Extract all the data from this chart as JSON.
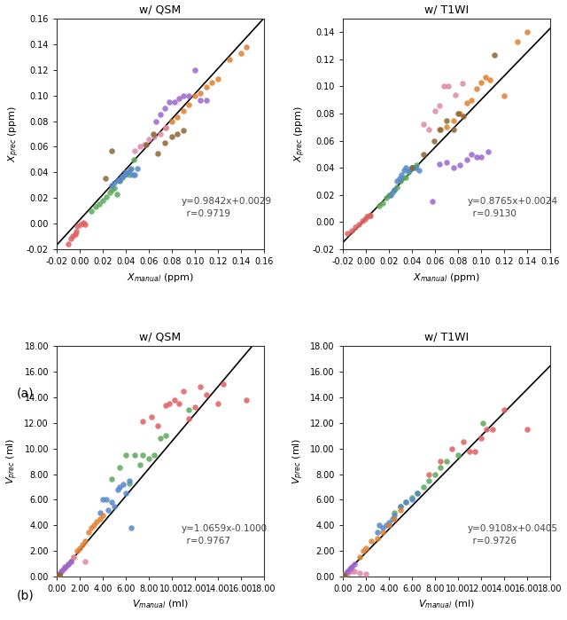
{
  "fig_width": 6.4,
  "fig_height": 6.99,
  "background": "white",
  "panel_a_qsm": {
    "title": "w/ QSM",
    "xlabel": "$X_{manual}$ (ppm)",
    "ylabel": "$X_{prec}$ (ppm)",
    "xlim": [
      -0.02,
      0.16
    ],
    "ylim": [
      -0.02,
      0.16
    ],
    "xticks": [
      -0.02,
      0.0,
      0.02,
      0.04,
      0.06,
      0.08,
      0.1,
      0.12,
      0.14,
      0.16
    ],
    "yticks": [
      -0.02,
      0.0,
      0.02,
      0.04,
      0.06,
      0.08,
      0.1,
      0.12,
      0.14,
      0.16
    ],
    "eq_text": "y=0.9842x+0.0029\n  r=0.9719",
    "slope": 0.9842,
    "intercept": 0.0029,
    "scatter": {
      "red": {
        "x": [
          -0.01,
          -0.008,
          -0.006,
          -0.004,
          -0.003,
          -0.002,
          0.001,
          0.003,
          0.005
        ],
        "y": [
          -0.016,
          -0.012,
          -0.01,
          -0.008,
          -0.006,
          -0.002,
          -0.001,
          0.001,
          -0.001
        ]
      },
      "green": {
        "x": [
          0.01,
          0.014,
          0.017,
          0.02,
          0.023,
          0.026,
          0.028,
          0.03,
          0.032,
          0.035,
          0.037,
          0.04,
          0.043,
          0.045,
          0.047
        ],
        "y": [
          0.01,
          0.013,
          0.015,
          0.018,
          0.021,
          0.024,
          0.026,
          0.028,
          0.023,
          0.033,
          0.036,
          0.039,
          0.038,
          0.043,
          0.05
        ]
      },
      "blue": {
        "x": [
          0.028,
          0.03,
          0.033,
          0.035,
          0.037,
          0.039,
          0.04,
          0.042,
          0.044,
          0.046,
          0.048,
          0.05
        ],
        "y": [
          0.03,
          0.032,
          0.034,
          0.034,
          0.037,
          0.038,
          0.04,
          0.04,
          0.042,
          0.038,
          0.038,
          0.043
        ]
      },
      "orange": {
        "x": [
          0.075,
          0.08,
          0.085,
          0.09,
          0.095,
          0.1,
          0.105,
          0.11,
          0.115,
          0.12,
          0.13,
          0.14,
          0.145
        ],
        "y": [
          0.075,
          0.08,
          0.083,
          0.088,
          0.093,
          0.1,
          0.102,
          0.107,
          0.11,
          0.113,
          0.128,
          0.133,
          0.138
        ]
      },
      "purple": {
        "x": [
          0.066,
          0.07,
          0.074,
          0.078,
          0.082,
          0.086,
          0.09,
          0.095,
          0.1,
          0.105,
          0.11
        ],
        "y": [
          0.08,
          0.085,
          0.09,
          0.095,
          0.095,
          0.098,
          0.1,
          0.1,
          0.12,
          0.096,
          0.096
        ]
      },
      "pink": {
        "x": [
          0.048,
          0.052,
          0.056,
          0.06,
          0.065,
          0.07,
          0.075
        ],
        "y": [
          0.057,
          0.06,
          0.062,
          0.066,
          0.068,
          0.07,
          0.075
        ]
      },
      "brown": {
        "x": [
          0.022,
          0.028,
          0.058,
          0.064,
          0.068,
          0.074,
          0.08,
          0.085,
          0.09
        ],
        "y": [
          0.035,
          0.057,
          0.062,
          0.07,
          0.055,
          0.063,
          0.068,
          0.07,
          0.073
        ]
      }
    }
  },
  "panel_a_t1wi": {
    "title": "w/ T1WI",
    "xlabel": "$X_{manual}$ (ppm)",
    "ylabel": "$X_{prec}$ (ppm)",
    "xlim": [
      -0.02,
      0.16
    ],
    "ylim": [
      -0.02,
      0.15
    ],
    "xticks": [
      -0.02,
      0.0,
      0.02,
      0.04,
      0.06,
      0.08,
      0.1,
      0.12,
      0.14,
      0.16
    ],
    "yticks": [
      -0.02,
      0.0,
      0.02,
      0.04,
      0.06,
      0.08,
      0.1,
      0.12,
      0.14
    ],
    "eq_text": "y=0.8765x+0.0024\n  r=0.9130",
    "slope": 0.8765,
    "intercept": 0.0024,
    "scatter": {
      "red": {
        "x": [
          -0.016,
          -0.012,
          -0.009,
          -0.006,
          -0.003,
          -0.001,
          0.001,
          0.003,
          0.004
        ],
        "y": [
          -0.008,
          -0.006,
          -0.004,
          -0.002,
          0.001,
          0.002,
          0.004,
          0.005,
          0.005
        ]
      },
      "green": {
        "x": [
          0.012,
          0.015,
          0.018,
          0.02,
          0.023,
          0.025,
          0.027,
          0.03,
          0.032,
          0.035,
          0.037,
          0.04,
          0.042,
          0.044
        ],
        "y": [
          0.012,
          0.014,
          0.018,
          0.02,
          0.022,
          0.024,
          0.026,
          0.03,
          0.032,
          0.033,
          0.037,
          0.04,
          0.04,
          0.042
        ]
      },
      "blue": {
        "x": [
          0.022,
          0.025,
          0.027,
          0.029,
          0.031,
          0.033,
          0.035,
          0.038,
          0.04,
          0.043,
          0.046
        ],
        "y": [
          0.02,
          0.024,
          0.03,
          0.032,
          0.035,
          0.038,
          0.04,
          0.038,
          0.04,
          0.04,
          0.038
        ]
      },
      "orange": {
        "x": [
          0.064,
          0.07,
          0.076,
          0.082,
          0.088,
          0.092,
          0.096,
          0.1,
          0.104,
          0.108,
          0.12,
          0.132,
          0.14
        ],
        "y": [
          0.068,
          0.07,
          0.075,
          0.08,
          0.088,
          0.09,
          0.098,
          0.103,
          0.107,
          0.105,
          0.093,
          0.133,
          0.14
        ]
      },
      "purple": {
        "x": [
          0.058,
          0.064,
          0.07,
          0.076,
          0.082,
          0.088,
          0.092,
          0.096,
          0.1,
          0.106
        ],
        "y": [
          0.015,
          0.043,
          0.044,
          0.04,
          0.042,
          0.046,
          0.05,
          0.048,
          0.048,
          0.052
        ]
      },
      "pink": {
        "x": [
          0.05,
          0.055,
          0.06,
          0.064,
          0.068,
          0.072,
          0.078,
          0.084
        ],
        "y": [
          0.072,
          0.068,
          0.082,
          0.086,
          0.1,
          0.1,
          0.094,
          0.102
        ]
      },
      "brown": {
        "x": [
          0.04,
          0.05,
          0.059,
          0.065,
          0.07,
          0.076,
          0.08,
          0.085,
          0.112
        ],
        "y": [
          0.04,
          0.05,
          0.06,
          0.068,
          0.075,
          0.068,
          0.08,
          0.078,
          0.123
        ]
      }
    }
  },
  "panel_b_qsm": {
    "title": "w/ QSM",
    "xlabel": "$V_{manual}$ (ml)",
    "ylabel": "$V_{prec}$ (ml)",
    "xlim": [
      0,
      18
    ],
    "ylim": [
      0,
      18
    ],
    "xticks": [
      0,
      2,
      4,
      6,
      8,
      10,
      12,
      14,
      16,
      18
    ],
    "yticks": [
      0,
      2,
      4,
      6,
      8,
      10,
      12,
      14,
      16,
      18
    ],
    "eq_text": "y=1.0659x-0.1000\n  r=0.9767",
    "slope": 1.0659,
    "intercept": -0.1,
    "scatter": {
      "red": {
        "x": [
          7.5,
          8.2,
          8.8,
          9.5,
          9.8,
          10.2,
          10.6,
          11.0,
          11.5,
          12.0,
          12.5,
          13.0,
          14.0,
          14.5,
          16.5
        ],
        "y": [
          12.1,
          12.5,
          11.8,
          13.4,
          13.5,
          13.8,
          13.5,
          14.5,
          12.3,
          13.2,
          14.8,
          14.2,
          13.5,
          15.0,
          13.8
        ]
      },
      "green": {
        "x": [
          4.8,
          5.5,
          6.0,
          6.3,
          6.8,
          7.2,
          7.5,
          8.0,
          8.5,
          9.0,
          9.5,
          11.5
        ],
        "y": [
          7.6,
          8.5,
          9.5,
          7.3,
          9.5,
          8.7,
          9.5,
          9.2,
          9.5,
          10.8,
          11.0,
          13.0
        ]
      },
      "blue": {
        "x": [
          3.8,
          4.0,
          4.3,
          4.5,
          4.8,
          5.0,
          5.3,
          5.5,
          5.8,
          6.0,
          6.3,
          6.5
        ],
        "y": [
          5.0,
          6.0,
          6.0,
          5.2,
          5.8,
          5.5,
          6.8,
          7.0,
          7.2,
          6.5,
          7.5,
          3.8
        ]
      },
      "orange": {
        "x": [
          1.5,
          1.8,
          2.0,
          2.2,
          2.5,
          2.8,
          3.0,
          3.2,
          3.5,
          3.8,
          4.0
        ],
        "y": [
          1.5,
          2.0,
          2.2,
          2.5,
          2.8,
          3.5,
          3.8,
          4.0,
          4.3,
          4.5,
          4.8
        ]
      },
      "pink": {
        "x": [
          0.3,
          0.5,
          0.7,
          1.0,
          1.2,
          1.5,
          2.5
        ],
        "y": [
          0.3,
          0.5,
          0.8,
          1.0,
          1.2,
          1.5,
          1.2
        ]
      },
      "purple": {
        "x": [
          0.2,
          0.4,
          0.6,
          0.8,
          1.0,
          1.2
        ],
        "y": [
          0.2,
          0.4,
          0.6,
          0.8,
          1.0,
          1.2
        ]
      },
      "brown": {
        "x": [
          0.1,
          0.15,
          0.2
        ],
        "y": [
          0.05,
          0.1,
          0.15
        ]
      }
    }
  },
  "panel_b_t1wi": {
    "title": "w/ T1WI",
    "xlabel": "$V_{manual}$ (ml)",
    "ylabel": "$V_{prec}$ (ml)",
    "xlim": [
      0,
      18
    ],
    "ylim": [
      0,
      18
    ],
    "xticks": [
      0,
      2,
      4,
      6,
      8,
      10,
      12,
      14,
      16,
      18
    ],
    "yticks": [
      0,
      2,
      4,
      6,
      8,
      10,
      12,
      14,
      16,
      18
    ],
    "eq_text": "y=0.9108x+0.0405\n  r=0.9726",
    "slope": 0.9108,
    "intercept": 0.0405,
    "scatter": {
      "red": {
        "x": [
          7.5,
          8.5,
          9.5,
          10.5,
          11.0,
          11.5,
          12.0,
          12.5,
          13.0,
          14.0,
          16.0
        ],
        "y": [
          8.0,
          9.0,
          10.0,
          10.5,
          9.8,
          9.8,
          10.8,
          11.5,
          11.5,
          13.0,
          11.5
        ]
      },
      "green": {
        "x": [
          4.5,
          5.0,
          5.5,
          6.0,
          6.5,
          7.0,
          7.5,
          8.0,
          8.5,
          9.0,
          10.0,
          12.2
        ],
        "y": [
          5.0,
          5.5,
          5.8,
          6.2,
          6.5,
          7.0,
          7.5,
          8.0,
          8.5,
          9.0,
          9.5,
          12.0
        ]
      },
      "blue": {
        "x": [
          3.0,
          3.2,
          3.5,
          3.8,
          4.0,
          4.3,
          4.5,
          5.0,
          5.5,
          6.0,
          6.5
        ],
        "y": [
          3.5,
          4.0,
          3.8,
          4.0,
          4.2,
          4.5,
          4.8,
          5.5,
          5.8,
          6.0,
          6.5
        ]
      },
      "orange": {
        "x": [
          1.5,
          1.8,
          2.0,
          2.5,
          3.0,
          3.5,
          4.0,
          4.5,
          5.0
        ],
        "y": [
          1.5,
          2.0,
          2.2,
          2.8,
          3.0,
          3.5,
          4.0,
          4.5,
          5.2
        ]
      },
      "pink": {
        "x": [
          0.5,
          0.8,
          1.0,
          1.5,
          2.0
        ],
        "y": [
          0.3,
          0.4,
          0.4,
          0.3,
          0.2
        ]
      },
      "purple": {
        "x": [
          0.2,
          0.4,
          0.6,
          0.8,
          1.0
        ],
        "y": [
          0.2,
          0.4,
          0.6,
          0.8,
          1.0
        ]
      },
      "brown": {
        "x": [
          0.1,
          0.2
        ],
        "y": [
          0.0,
          0.1
        ]
      }
    }
  },
  "colors": {
    "red": "#e06060",
    "green": "#5aaa5a",
    "blue": "#5588cc",
    "orange": "#e08030",
    "purple": "#9966cc",
    "pink": "#dd88aa",
    "brown": "#886633"
  },
  "label_a": "(a)",
  "label_b": "(b)"
}
